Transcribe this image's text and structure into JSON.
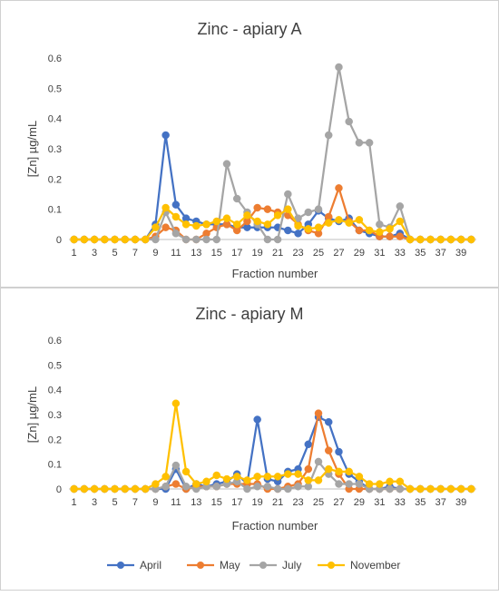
{
  "chart_data": [
    {
      "type": "line",
      "title": "Zinc - apiary A",
      "xlabel": "Fraction number",
      "ylabel": "[Zn] µg/mL",
      "ylim": [
        0,
        0.6
      ],
      "yticks": [
        "0",
        "0.1",
        "0.2",
        "0.3",
        "0.4",
        "0.5",
        "0.6"
      ],
      "x": [
        1,
        2,
        3,
        4,
        5,
        6,
        7,
        8,
        9,
        10,
        11,
        12,
        13,
        14,
        15,
        16,
        17,
        18,
        19,
        20,
        21,
        22,
        23,
        24,
        25,
        26,
        27,
        28,
        29,
        30,
        31,
        32,
        33,
        34,
        35,
        36,
        37,
        38,
        39,
        40
      ],
      "xticks": [
        "1",
        "3",
        "5",
        "7",
        "9",
        "11",
        "13",
        "15",
        "17",
        "19",
        "21",
        "23",
        "25",
        "27",
        "29",
        "31",
        "33",
        "35",
        "37",
        "39"
      ],
      "grid": false,
      "series": [
        {
          "name": "April",
          "values": [
            0,
            0,
            0,
            0,
            0,
            0,
            0,
            0,
            0.05,
            0.345,
            0.115,
            0.07,
            0.06,
            0.05,
            0.05,
            0.05,
            0.04,
            0.04,
            0.04,
            0.04,
            0.04,
            0.03,
            0.02,
            0.05,
            0.095,
            0.07,
            0.06,
            0.07,
            0.03,
            0.02,
            0.01,
            0.01,
            0.02,
            0,
            0,
            0,
            0,
            0,
            0,
            0
          ]
        },
        {
          "name": "May",
          "values": [
            0,
            0,
            0,
            0,
            0,
            0,
            0,
            0,
            0.01,
            0.04,
            0.03,
            0,
            0,
            0.02,
            0.04,
            0.05,
            0.03,
            0.06,
            0.105,
            0.1,
            0.09,
            0.08,
            0.05,
            0.03,
            0.02,
            0.075,
            0.17,
            0.06,
            0.03,
            0.03,
            0.01,
            0.01,
            0.01,
            0,
            0,
            0,
            0,
            0,
            0,
            0
          ]
        },
        {
          "name": "July",
          "values": [
            0,
            0,
            0,
            0,
            0,
            0,
            0,
            0,
            0,
            0.09,
            0.02,
            0,
            0,
            0,
            0,
            0.25,
            0.135,
            0.09,
            0.05,
            0,
            0,
            0.15,
            0.07,
            0.09,
            0.1,
            0.345,
            0.57,
            0.39,
            0.32,
            0.32,
            0.05,
            0.04,
            0.11,
            0,
            0,
            0,
            0,
            0,
            0,
            0
          ]
        },
        {
          "name": "November",
          "values": [
            0,
            0,
            0,
            0,
            0,
            0,
            0,
            0,
            0.04,
            0.105,
            0.075,
            0.05,
            0.045,
            0.05,
            0.06,
            0.07,
            0.05,
            0.08,
            0.06,
            0.05,
            0.08,
            0.1,
            0.045,
            0.035,
            0.04,
            0.055,
            0.065,
            0.055,
            0.065,
            0.03,
            0.025,
            0.035,
            0.06,
            0,
            0,
            0,
            0,
            0,
            0,
            0
          ]
        }
      ]
    },
    {
      "type": "line",
      "title": "Zinc - apiary M",
      "xlabel": "Fraction number",
      "ylabel": "[Zn] µg/mL",
      "ylim": [
        0,
        0.6
      ],
      "yticks": [
        "0",
        "0.1",
        "0.2",
        "0.3",
        "0.4",
        "0.5",
        "0.6"
      ],
      "x": [
        1,
        2,
        3,
        4,
        5,
        6,
        7,
        8,
        9,
        10,
        11,
        12,
        13,
        14,
        15,
        16,
        17,
        18,
        19,
        20,
        21,
        22,
        23,
        24,
        25,
        26,
        27,
        28,
        29,
        30,
        31,
        32,
        33,
        34,
        35,
        36,
        37,
        38,
        39,
        40
      ],
      "xticks": [
        "1",
        "3",
        "5",
        "7",
        "9",
        "11",
        "13",
        "15",
        "17",
        "19",
        "21",
        "23",
        "25",
        "27",
        "29",
        "31",
        "33",
        "35",
        "37",
        "39"
      ],
      "grid": false,
      "series": [
        {
          "name": "April",
          "values": [
            0,
            0,
            0,
            0,
            0,
            0,
            0,
            0,
            0,
            0,
            0.08,
            0,
            0.02,
            0.01,
            0.02,
            0.03,
            0.06,
            0.02,
            0.28,
            0.04,
            0.03,
            0.07,
            0.08,
            0.18,
            0.29,
            0.27,
            0.15,
            0.06,
            0.03,
            0,
            0,
            0.01,
            0,
            0,
            0,
            0,
            0,
            0,
            0,
            0
          ]
        },
        {
          "name": "May",
          "values": [
            0,
            0,
            0,
            0,
            0,
            0,
            0,
            0,
            0,
            0.01,
            0.02,
            0,
            0.01,
            0.01,
            0.01,
            0.02,
            0.02,
            0.02,
            0.02,
            0,
            0,
            0.01,
            0.02,
            0.08,
            0.305,
            0.155,
            0.06,
            0,
            0,
            0,
            0,
            0,
            0,
            0,
            0,
            0,
            0,
            0,
            0,
            0
          ]
        },
        {
          "name": "July",
          "values": [
            0,
            0,
            0,
            0,
            0,
            0,
            0,
            0,
            0,
            0.01,
            0.095,
            0.01,
            0,
            0.01,
            0.01,
            0.02,
            0.03,
            0,
            0.01,
            0.01,
            0,
            0,
            0.01,
            0.01,
            0.11,
            0.06,
            0.02,
            0.02,
            0.02,
            0,
            0,
            0,
            0,
            0,
            0,
            0,
            0,
            0,
            0,
            0
          ]
        },
        {
          "name": "November",
          "values": [
            0,
            0,
            0,
            0,
            0,
            0,
            0,
            0,
            0.02,
            0.05,
            0.345,
            0.07,
            0.02,
            0.03,
            0.055,
            0.04,
            0.05,
            0.035,
            0.05,
            0.05,
            0.05,
            0.06,
            0.06,
            0.035,
            0.035,
            0.08,
            0.07,
            0.07,
            0.05,
            0.02,
            0.02,
            0.03,
            0.03,
            0,
            0,
            0,
            0,
            0,
            0,
            0
          ]
        }
      ]
    }
  ],
  "legend": {
    "items": [
      {
        "label": "April",
        "color": "#4472C4"
      },
      {
        "label": "May",
        "color": "#ED7D31"
      },
      {
        "label": "July",
        "color": "#A5A5A5"
      },
      {
        "label": "November",
        "color": "#FFC000"
      }
    ]
  }
}
